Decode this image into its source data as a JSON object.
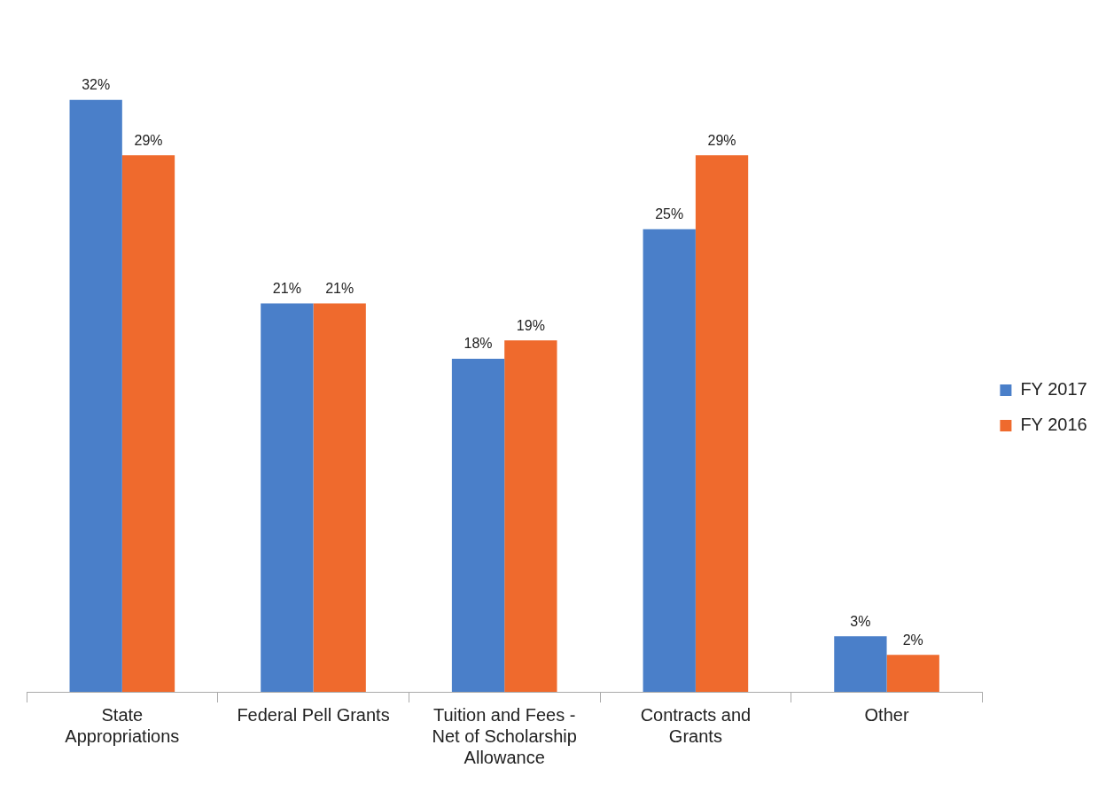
{
  "chart_data": {
    "type": "bar",
    "categories": [
      "State Appropriations",
      "Federal Pell Grants",
      "Tuition and Fees - Net of Scholarship Allowance",
      "Contracts and Grants",
      "Other"
    ],
    "series": [
      {
        "name": "FY 2017",
        "color": "#4a7fc9",
        "values": [
          32,
          21,
          18,
          25,
          3
        ],
        "value_labels": [
          "32%",
          "21%",
          "18%",
          "25%",
          "3%"
        ]
      },
      {
        "name": "FY 2016",
        "color": "#ef6a2d",
        "values": [
          29,
          21,
          19,
          29,
          2
        ],
        "value_labels": [
          "29%",
          "21%",
          "19%",
          "29%",
          "2%"
        ]
      }
    ],
    "legend": "right",
    "grid": false
  }
}
